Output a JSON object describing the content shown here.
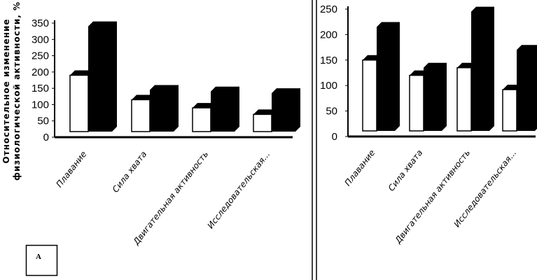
{
  "chart_data": [
    {
      "type": "bar",
      "panel_label": "A",
      "ylabel_lines": [
        "Относительное изменение",
        "физиологической активности, %"
      ],
      "categories": [
        "Плавание",
        "Сила хвата",
        "Двигательная активность",
        "Исследовательская..."
      ],
      "series": [
        {
          "color": "#ffffff",
          "values": [
            190,
            115,
            90,
            70
          ]
        },
        {
          "color": "#000000",
          "values": [
            340,
            145,
            140,
            135
          ]
        }
      ],
      "ylim": [
        0,
        350
      ],
      "yticks": [
        0,
        50,
        100,
        150,
        200,
        250,
        300,
        350
      ],
      "style": "3d-columns",
      "grid": false
    },
    {
      "type": "bar",
      "categories": [
        "Плавание",
        "Сила хвата",
        "Двигательная активность",
        "Исследовательская..."
      ],
      "series": [
        {
          "color": "#ffffff",
          "values": [
            150,
            120,
            135,
            92
          ]
        },
        {
          "color": "#000000",
          "values": [
            215,
            135,
            245,
            170
          ]
        }
      ],
      "ylim": [
        0,
        250
      ],
      "yticks": [
        0,
        50,
        100,
        150,
        200,
        250
      ],
      "style": "3d-columns",
      "grid": false
    }
  ]
}
